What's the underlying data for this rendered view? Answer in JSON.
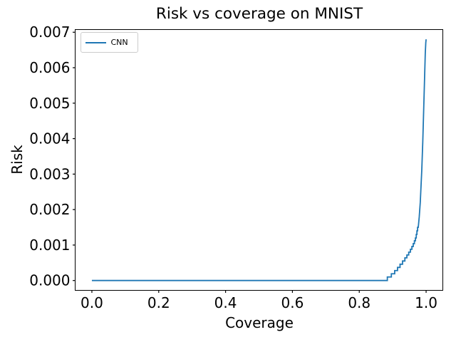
{
  "chart_data": {
    "type": "line",
    "title": "Risk vs coverage on MNIST",
    "xlabel": "Coverage",
    "ylabel": "Risk",
    "grid": false,
    "background": "#ffffff",
    "axis_color": "#000000",
    "xlim": [
      -0.05,
      1.05
    ],
    "ylim": [
      -0.000277,
      0.007075
    ],
    "x_ticks": [
      0.0,
      0.2,
      0.4,
      0.6,
      0.8,
      1.0
    ],
    "x_tick_labels": [
      "0.0",
      "0.2",
      "0.4",
      "0.6",
      "0.8",
      "1.0"
    ],
    "y_ticks": [
      0.0,
      0.001,
      0.002,
      0.003,
      0.004,
      0.005,
      0.006,
      0.007
    ],
    "y_tick_labels": [
      "0.000",
      "0.001",
      "0.002",
      "0.003",
      "0.004",
      "0.005",
      "0.006",
      "0.007"
    ],
    "legend": {
      "position": "upper left",
      "entries": [
        {
          "label": "CNN",
          "color": "#1f77b4"
        }
      ]
    },
    "series": [
      {
        "name": "CNN",
        "color": "#1f77b4",
        "line_width": 1.8,
        "x": [
          0.0,
          0.884,
          0.884,
          0.896,
          0.896,
          0.906,
          0.906,
          0.9145,
          0.9145,
          0.922,
          0.922,
          0.9295,
          0.9295,
          0.9365,
          0.9365,
          0.9425,
          0.9425,
          0.948,
          0.948,
          0.953,
          0.953,
          0.9575,
          0.9575,
          0.9615,
          0.9615,
          0.965,
          0.965,
          0.968,
          0.968,
          0.9705,
          0.9705,
          0.9725,
          0.9725,
          0.9745,
          0.9745,
          0.9765,
          0.978,
          0.9795,
          0.981,
          0.9825,
          0.984,
          0.9855,
          0.987,
          0.9885,
          0.99,
          0.9915,
          0.993,
          0.9945,
          0.996,
          0.9975,
          0.999,
          1.0
        ],
        "y": [
          0.0,
          0.0,
          0.0001,
          0.0001,
          0.00019,
          0.00019,
          0.00028,
          0.00028,
          0.00037,
          0.00037,
          0.00046,
          0.00046,
          0.00055,
          0.00055,
          0.00064,
          0.00064,
          0.00072,
          0.00072,
          0.0008,
          0.0008,
          0.00088,
          0.00088,
          0.00096,
          0.00096,
          0.00104,
          0.00104,
          0.00112,
          0.00112,
          0.0012,
          0.0012,
          0.0013,
          0.0013,
          0.0014,
          0.0014,
          0.0015,
          0.0015,
          0.00165,
          0.0018,
          0.002,
          0.0022,
          0.0025,
          0.0028,
          0.0031,
          0.0035,
          0.0039,
          0.0044,
          0.0049,
          0.0054,
          0.0059,
          0.0064,
          0.0067,
          0.0068
        ]
      }
    ]
  }
}
